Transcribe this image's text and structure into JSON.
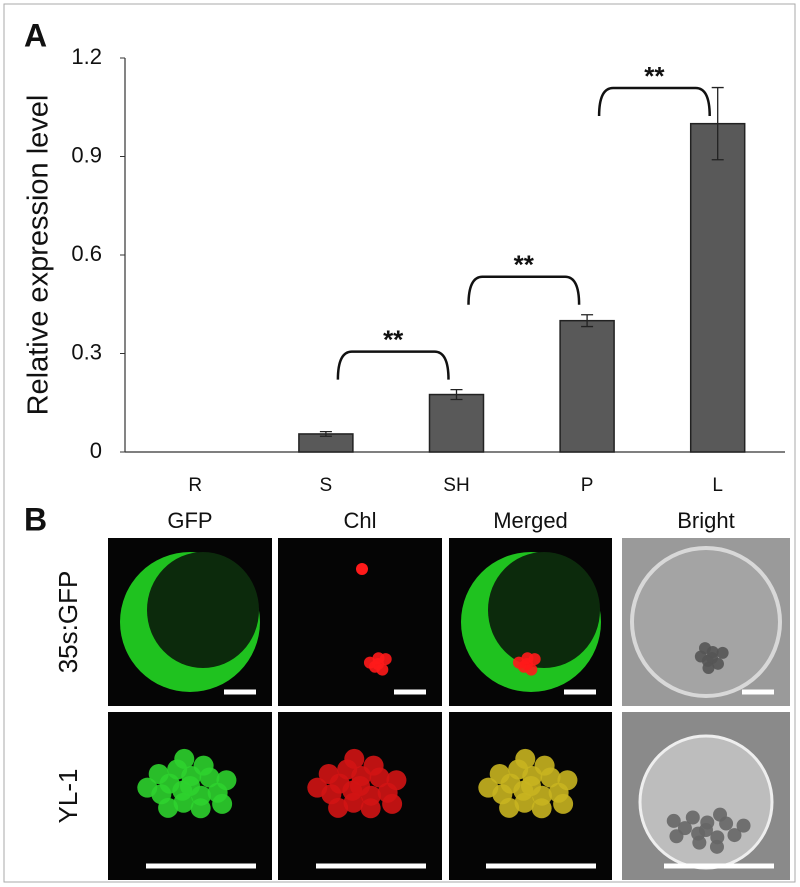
{
  "chart_data": {
    "type": "bar",
    "panel_label": "A",
    "ylabel": "Relative expression level",
    "categories": [
      "R",
      "S",
      "SH",
      "P",
      "L"
    ],
    "values": [
      0,
      0.055,
      0.175,
      0.4,
      1.0
    ],
    "errors": [
      0,
      0.007,
      0.015,
      0.018,
      0.11
    ],
    "color": "#595959",
    "ylim": [
      0,
      1.2
    ],
    "yticks": [
      0,
      0.3,
      0.6,
      0.9,
      1.2
    ],
    "annotations": [
      "**",
      "**",
      "**"
    ]
  },
  "panel_b": {
    "label": "B",
    "columns": [
      "GFP",
      "Chl",
      "Merged",
      "Bright"
    ],
    "rows": [
      "35s:GFP",
      "YL-1"
    ]
  }
}
